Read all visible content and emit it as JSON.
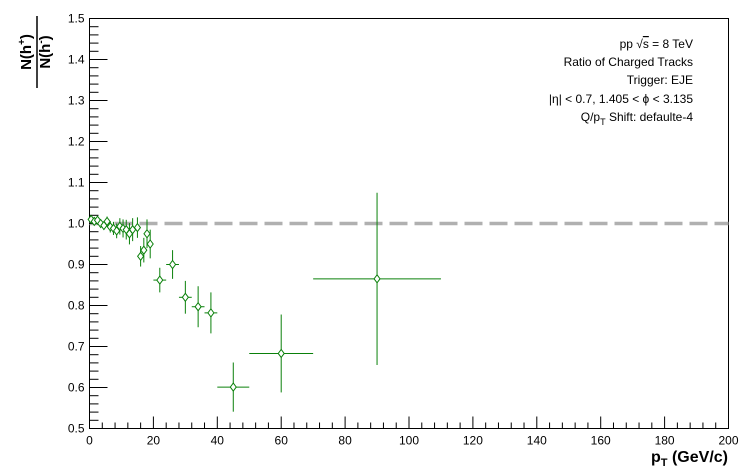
{
  "chart_data": {
    "type": "scatter",
    "xlabel": "p_T (GeV/c)",
    "ylabel": "N(h+)/N(h-)",
    "ylabel_numerator": "N(h",
    "ylabel_numerator_sup": "+",
    "ylabel_denominator": "N(h",
    "ylabel_denominator_sup": "-",
    "xlabel_main": "p",
    "xlabel_sub": "T",
    "xlabel_units": " (GeV/c)",
    "xlim": [
      0,
      200
    ],
    "ylim": [
      0.5,
      1.5
    ],
    "x_ticks": [
      "0",
      "20",
      "40",
      "60",
      "80",
      "100",
      "120",
      "140",
      "160",
      "180",
      "200"
    ],
    "y_ticks": [
      "0.5",
      "0.6",
      "0.7",
      "0.8",
      "0.9",
      "1.0",
      "1.1",
      "1.2",
      "1.3",
      "1.4",
      "1.5"
    ],
    "grid": false,
    "reference_line": {
      "y": 1.0,
      "style": "dashed",
      "color": "#b0b0b0"
    },
    "annotations": {
      "line1_prefix": "pp  ",
      "line1_sqrt": "s",
      "line1_suffix": " = 8 TeV",
      "line2": "Ratio of Charged Tracks",
      "line3": "Trigger: EJE",
      "line4": "|η| < 0.7, 1.405 < ϕ < 3.135",
      "line5_a": "Q/p",
      "line5_sub": "T",
      "line5_b": " Shift: defaulte-4"
    },
    "series_color": "#0a800a",
    "points": [
      {
        "x": 0.5,
        "y": 1.01,
        "xerr": 0.5,
        "yerr": 0.006
      },
      {
        "x": 1.5,
        "y": 1.005,
        "xerr": 0.5,
        "yerr": 0.006
      },
      {
        "x": 2.5,
        "y": 1.008,
        "xerr": 0.5,
        "yerr": 0.007
      },
      {
        "x": 3.5,
        "y": 1.0,
        "xerr": 0.5,
        "yerr": 0.008
      },
      {
        "x": 4.5,
        "y": 0.995,
        "xerr": 0.5,
        "yerr": 0.01
      },
      {
        "x": 5.5,
        "y": 1.005,
        "xerr": 0.5,
        "yerr": 0.012
      },
      {
        "x": 6.5,
        "y": 0.992,
        "xerr": 0.5,
        "yerr": 0.014
      },
      {
        "x": 7.5,
        "y": 0.988,
        "xerr": 0.5,
        "yerr": 0.016
      },
      {
        "x": 8.5,
        "y": 0.982,
        "xerr": 0.5,
        "yerr": 0.018
      },
      {
        "x": 9.5,
        "y": 0.993,
        "xerr": 0.5,
        "yerr": 0.02
      },
      {
        "x": 10.5,
        "y": 0.988,
        "xerr": 0.5,
        "yerr": 0.022
      },
      {
        "x": 11.5,
        "y": 0.985,
        "xerr": 0.5,
        "yerr": 0.024
      },
      {
        "x": 12.5,
        "y": 0.975,
        "xerr": 0.5,
        "yerr": 0.026
      },
      {
        "x": 13.5,
        "y": 0.985,
        "xerr": 0.5,
        "yerr": 0.028
      },
      {
        "x": 15,
        "y": 0.99,
        "xerr": 1,
        "yerr": 0.025
      },
      {
        "x": 16,
        "y": 0.92,
        "xerr": 1,
        "yerr": 0.025
      },
      {
        "x": 17,
        "y": 0.935,
        "xerr": 1,
        "yerr": 0.03
      },
      {
        "x": 18,
        "y": 0.975,
        "xerr": 1,
        "yerr": 0.035
      },
      {
        "x": 19,
        "y": 0.95,
        "xerr": 1,
        "yerr": 0.035
      },
      {
        "x": 22,
        "y": 0.862,
        "xerr": 2,
        "yerr": 0.03
      },
      {
        "x": 26,
        "y": 0.9,
        "xerr": 2,
        "yerr": 0.035
      },
      {
        "x": 30,
        "y": 0.82,
        "xerr": 2,
        "yerr": 0.04
      },
      {
        "x": 34,
        "y": 0.797,
        "xerr": 2,
        "yerr": 0.05
      },
      {
        "x": 38,
        "y": 0.782,
        "xerr": 2,
        "yerr": 0.05
      },
      {
        "x": 45,
        "y": 0.601,
        "xerr": 5,
        "yerr": 0.06
      },
      {
        "x": 60,
        "y": 0.683,
        "xerr": 10,
        "yerr": 0.095
      },
      {
        "x": 90,
        "y": 0.865,
        "xerr": 20,
        "yerr": 0.21
      }
    ]
  }
}
